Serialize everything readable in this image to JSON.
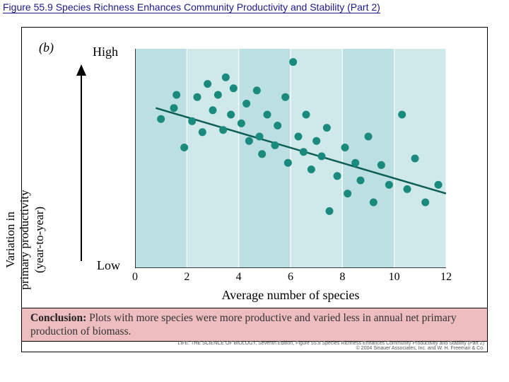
{
  "title": "Figure 55.9  Species Richness Enhances Community Productivity and Stability (Part 2)",
  "panel_label": "(b)",
  "chart": {
    "type": "scatter",
    "background_color": "#bcdfe1",
    "grid_band_color": "#cfe9ea",
    "point_color": "#1a8a7d",
    "point_radius": 5.5,
    "trend_color": "#0e5e56",
    "trend_width": 2.5,
    "axis_color": "#000000",
    "xlim": [
      0,
      12
    ],
    "ylim": [
      0,
      1
    ],
    "xticks": [
      0,
      2,
      4,
      6,
      8,
      10,
      12
    ],
    "xlabel": "Average number of species",
    "y_label_lines": "Variation in\nprimary productivity\n(year-to-year)",
    "y_high": "High",
    "y_low": "Low",
    "trend_line": {
      "x1": 0.8,
      "y1": 0.73,
      "x2": 12,
      "y2": 0.34
    },
    "points": [
      {
        "x": 1.0,
        "y": 0.68
      },
      {
        "x": 1.5,
        "y": 0.73
      },
      {
        "x": 1.6,
        "y": 0.79
      },
      {
        "x": 1.9,
        "y": 0.55
      },
      {
        "x": 2.2,
        "y": 0.67
      },
      {
        "x": 2.4,
        "y": 0.78
      },
      {
        "x": 2.6,
        "y": 0.62
      },
      {
        "x": 2.8,
        "y": 0.84
      },
      {
        "x": 3.0,
        "y": 0.72
      },
      {
        "x": 3.2,
        "y": 0.79
      },
      {
        "x": 3.4,
        "y": 0.63
      },
      {
        "x": 3.5,
        "y": 0.87
      },
      {
        "x": 3.7,
        "y": 0.7
      },
      {
        "x": 3.8,
        "y": 0.82
      },
      {
        "x": 4.1,
        "y": 0.66
      },
      {
        "x": 4.3,
        "y": 0.75
      },
      {
        "x": 4.4,
        "y": 0.58
      },
      {
        "x": 4.7,
        "y": 0.81
      },
      {
        "x": 4.8,
        "y": 0.6
      },
      {
        "x": 4.9,
        "y": 0.52
      },
      {
        "x": 5.1,
        "y": 0.7
      },
      {
        "x": 5.4,
        "y": 0.56
      },
      {
        "x": 5.5,
        "y": 0.65
      },
      {
        "x": 5.8,
        "y": 0.78
      },
      {
        "x": 5.9,
        "y": 0.48
      },
      {
        "x": 6.1,
        "y": 0.94
      },
      {
        "x": 6.3,
        "y": 0.6
      },
      {
        "x": 6.5,
        "y": 0.53
      },
      {
        "x": 6.6,
        "y": 0.7
      },
      {
        "x": 6.8,
        "y": 0.45
      },
      {
        "x": 7.0,
        "y": 0.58
      },
      {
        "x": 7.2,
        "y": 0.51
      },
      {
        "x": 7.4,
        "y": 0.64
      },
      {
        "x": 7.5,
        "y": 0.26
      },
      {
        "x": 7.8,
        "y": 0.42
      },
      {
        "x": 8.1,
        "y": 0.55
      },
      {
        "x": 8.2,
        "y": 0.34
      },
      {
        "x": 8.5,
        "y": 0.48
      },
      {
        "x": 8.7,
        "y": 0.4
      },
      {
        "x": 9.0,
        "y": 0.6
      },
      {
        "x": 9.2,
        "y": 0.3
      },
      {
        "x": 9.5,
        "y": 0.47
      },
      {
        "x": 9.8,
        "y": 0.38
      },
      {
        "x": 10.3,
        "y": 0.7
      },
      {
        "x": 10.5,
        "y": 0.36
      },
      {
        "x": 10.8,
        "y": 0.5
      },
      {
        "x": 11.2,
        "y": 0.3
      },
      {
        "x": 11.7,
        "y": 0.38
      }
    ]
  },
  "conclusion_label": "Conclusion:",
  "conclusion_text": " Plots with more species were more productive and varied less in annual net primary production of biomass.",
  "copyright_line1": "LIFE: THE SCIENCE OF BIOLOGY, Seventh Edition, Figure 55.9 Species Richness Enhances Community Productivity and Stability (Part 2)",
  "copyright_line2": "© 2004 Sinauer Associates, Inc. and W. H. Freeman & Co."
}
